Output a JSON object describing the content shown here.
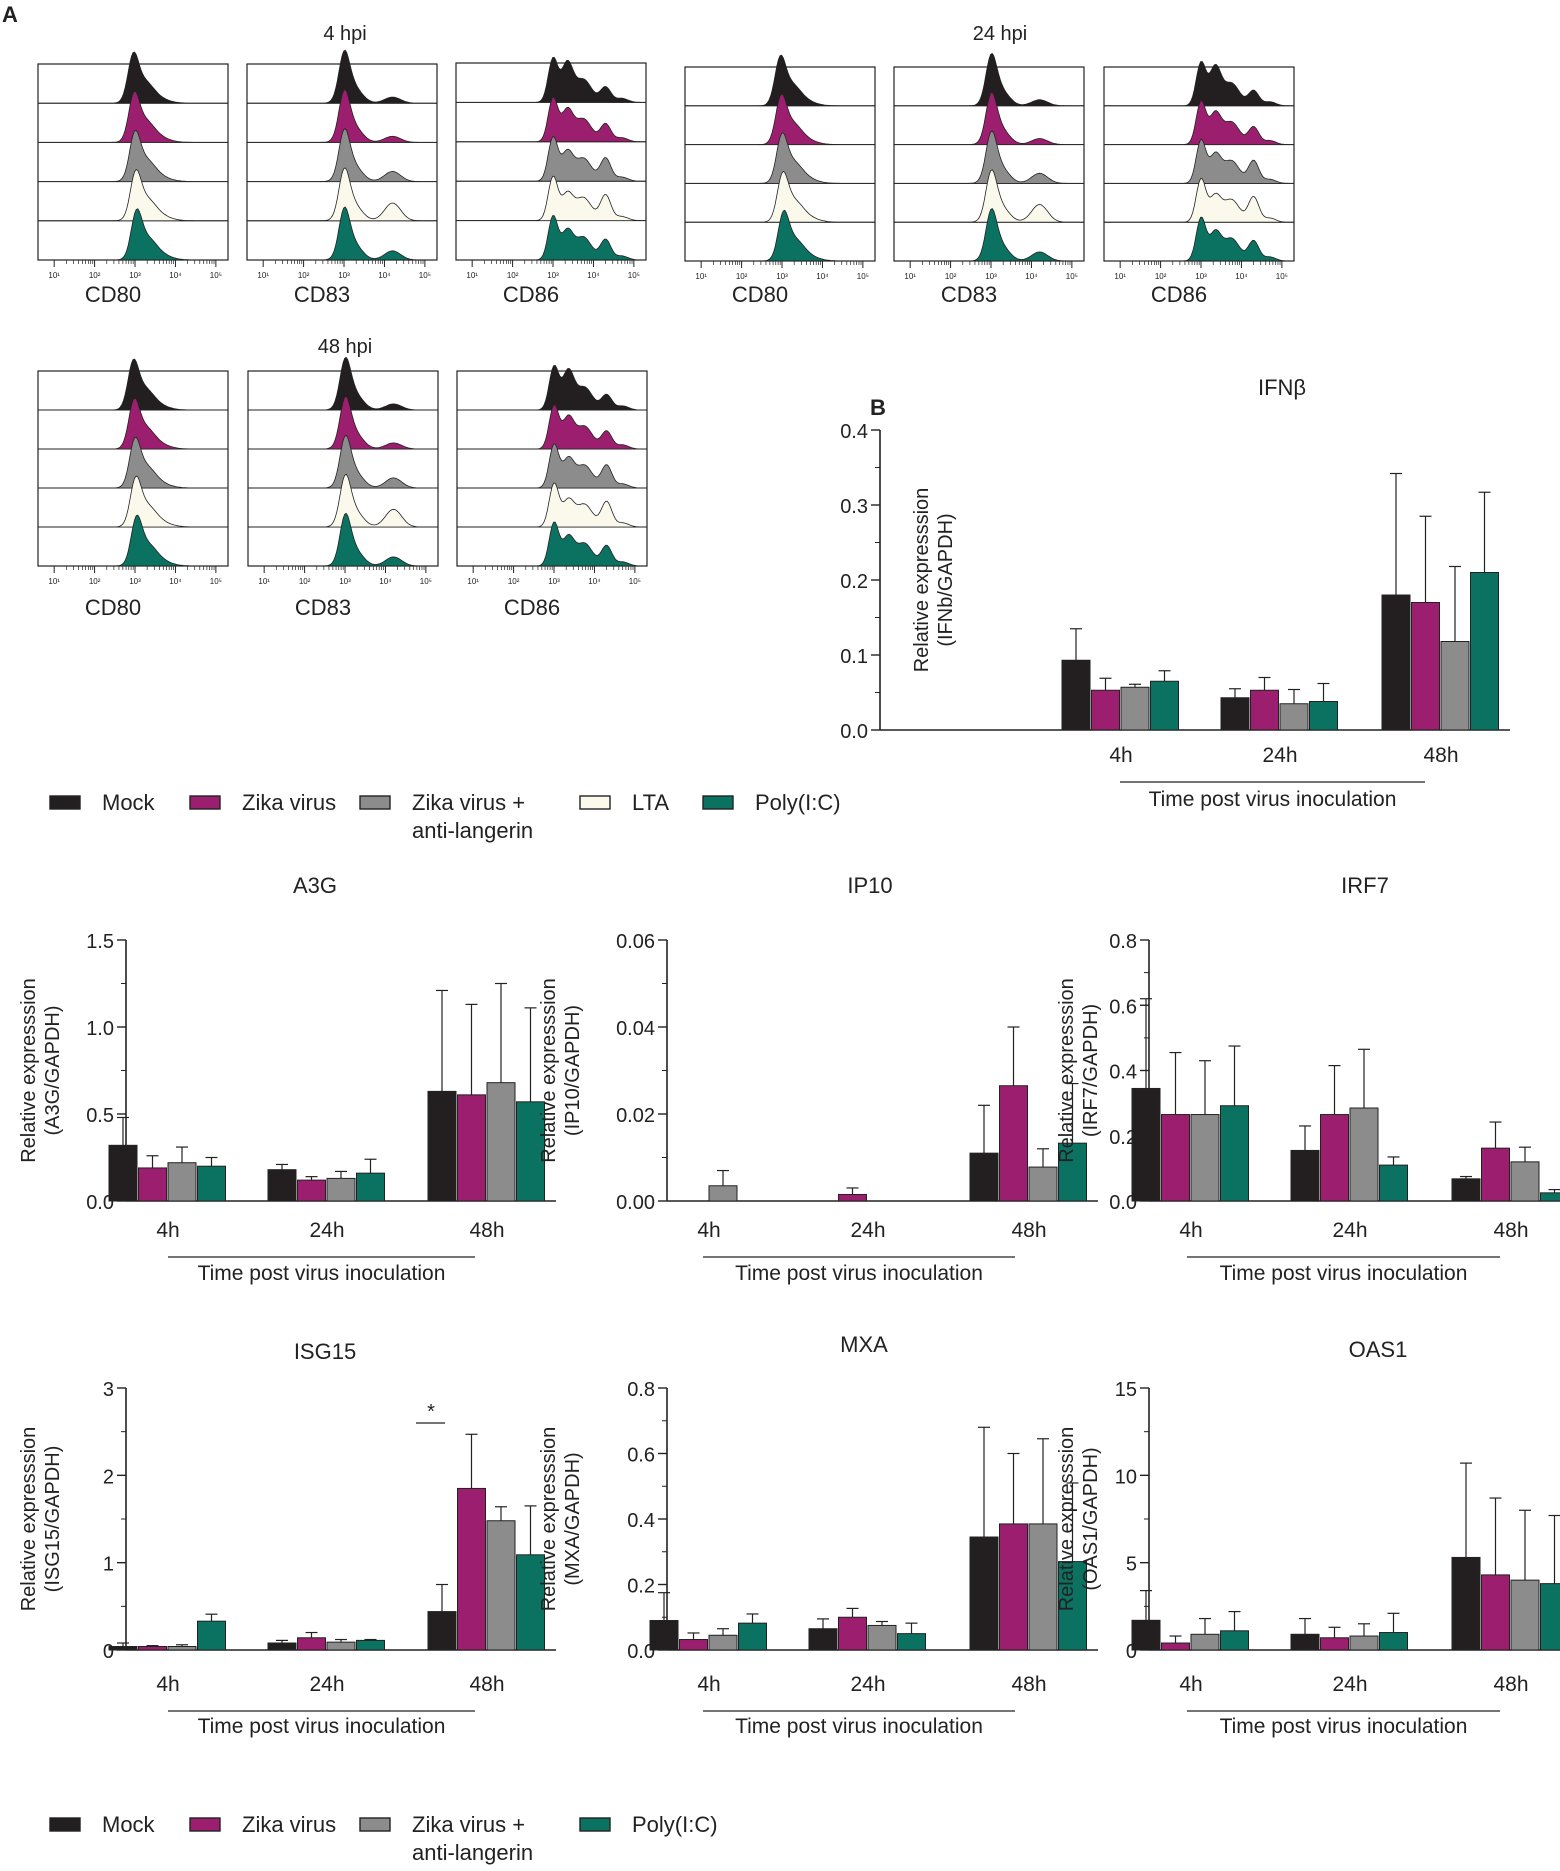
{
  "figure": {
    "panel_a_label": "A",
    "panel_b_label": "B",
    "tick_labels": [
      "10¹",
      "10²",
      "10³",
      "10⁴",
      "10⁵"
    ],
    "legend_a": [
      {
        "label": "Mock",
        "color": "#231f20"
      },
      {
        "label": "Zika virus",
        "color": "#9b1f6e"
      },
      {
        "label": "Zika virus +",
        "label2": "anti-langerin",
        "color": "#8c8c8c"
      },
      {
        "label": "LTA",
        "color": "#fbf9ec"
      },
      {
        "label": "Poly(I:C)",
        "color": "#0b7262"
      }
    ],
    "legend_b": [
      {
        "label": "Mock",
        "color": "#231f20"
      },
      {
        "label": "Zika virus",
        "color": "#9b1f6e"
      },
      {
        "label": "Zika virus +",
        "label2": "anti-langerin",
        "color": "#8c8c8c"
      },
      {
        "label": "Poly(I:C)",
        "color": "#0b7262"
      }
    ]
  },
  "chart_data": [
    {
      "type": "histogram",
      "title": "4 hpi",
      "markers": [
        "CD80",
        "CD83",
        "CD86"
      ],
      "samples": [
        "Mock",
        "Zika virus",
        "Zika virus + anti-langerin",
        "LTA",
        "Poly(I:C)"
      ],
      "x_scale": "log",
      "xlim": [
        10,
        100000
      ]
    },
    {
      "type": "histogram",
      "title": "24 hpi",
      "markers": [
        "CD80",
        "CD83",
        "CD86"
      ],
      "samples": [
        "Mock",
        "Zika virus",
        "Zika virus + anti-langerin",
        "LTA",
        "Poly(I:C)"
      ],
      "x_scale": "log",
      "xlim": [
        10,
        100000
      ]
    },
    {
      "type": "histogram",
      "title": "48 hpi",
      "markers": [
        "CD80",
        "CD83",
        "CD86"
      ],
      "samples": [
        "Mock",
        "Zika virus",
        "Zika virus + anti-langerin",
        "LTA",
        "Poly(I:C)"
      ],
      "x_scale": "log",
      "xlim": [
        10,
        100000
      ]
    },
    {
      "type": "bar",
      "title": "IFNβ",
      "ylabel1": "Relative expresssion",
      "ylabel2": "(IFNb/GAPDH)",
      "xlabel": "Time post virus inoculation",
      "categories": [
        "4h",
        "24h",
        "48h"
      ],
      "ylim": [
        0,
        0.4
      ],
      "yticks": [
        "0.0",
        "0.1",
        "0.2",
        "0.3",
        "0.4"
      ],
      "series": [
        {
          "name": "Mock",
          "values": [
            0.093,
            0.043,
            0.18
          ],
          "errors": [
            0.042,
            0.012,
            0.162
          ]
        },
        {
          "name": "Zika virus",
          "values": [
            0.053,
            0.053,
            0.17
          ],
          "errors": [
            0.016,
            0.017,
            0.115
          ]
        },
        {
          "name": "Zika virus + anti-langerin",
          "values": [
            0.057,
            0.035,
            0.118
          ],
          "errors": [
            0.004,
            0.019,
            0.1
          ]
        },
        {
          "name": "Poly(I:C)",
          "values": [
            0.065,
            0.038,
            0.21
          ],
          "errors": [
            0.014,
            0.024,
            0.107
          ]
        }
      ]
    },
    {
      "type": "bar",
      "title": "A3G",
      "ylabel1": "Relative expresssion",
      "ylabel2": "(A3G/GAPDH)",
      "xlabel": "Time post virus inoculation",
      "categories": [
        "4h",
        "24h",
        "48h"
      ],
      "ylim": [
        0,
        1.5
      ],
      "yticks": [
        "0.0",
        "0.5",
        "1.0",
        "1.5"
      ],
      "series": [
        {
          "name": "Mock",
          "values": [
            0.32,
            0.18,
            0.63
          ],
          "errors": [
            0.16,
            0.03,
            0.58
          ]
        },
        {
          "name": "Zika virus",
          "values": [
            0.19,
            0.12,
            0.61
          ],
          "errors": [
            0.07,
            0.02,
            0.52
          ]
        },
        {
          "name": "Zika virus + anti-langerin",
          "values": [
            0.22,
            0.13,
            0.68
          ],
          "errors": [
            0.09,
            0.04,
            0.57
          ]
        },
        {
          "name": "Poly(I:C)",
          "values": [
            0.2,
            0.16,
            0.57
          ],
          "errors": [
            0.05,
            0.08,
            0.54
          ]
        }
      ]
    },
    {
      "type": "bar",
      "title": "IP10",
      "ylabel1": "Relative expresssion",
      "ylabel2": "(IP10/GAPDH)",
      "xlabel": "Time post virus inoculation",
      "categories": [
        "4h",
        "24h",
        "48h"
      ],
      "ylim": [
        0,
        0.06
      ],
      "yticks": [
        "0.00",
        "0.02",
        "0.04",
        "0.06"
      ],
      "series": [
        {
          "name": "Mock",
          "values": [
            0,
            0,
            0.011
          ],
          "errors": [
            0,
            0,
            0.011
          ]
        },
        {
          "name": "Zika virus",
          "values": [
            0,
            0.0015,
            0.0265
          ],
          "errors": [
            0,
            0.0015,
            0.0135
          ]
        },
        {
          "name": "Zika virus + anti-langerin",
          "values": [
            0.0035,
            0,
            0.0078
          ],
          "errors": [
            0.0035,
            0,
            0.0042
          ]
        },
        {
          "name": "Poly(I:C)",
          "values": [
            0,
            0,
            0.0133
          ],
          "errors": [
            0,
            0,
            0.0137
          ]
        }
      ]
    },
    {
      "type": "bar",
      "title": "IRF7",
      "ylabel1": "Relative expresssion",
      "ylabel2": "(IRF7/GAPDH)",
      "xlabel": "Time post virus inoculation",
      "categories": [
        "4h",
        "24h",
        "48h"
      ],
      "ylim": [
        0,
        0.8
      ],
      "yticks": [
        "0.0",
        "0.2",
        "0.4",
        "0.6",
        "0.8"
      ],
      "series": [
        {
          "name": "Mock",
          "values": [
            0.345,
            0.155,
            0.068
          ],
          "errors": [
            0.275,
            0.075,
            0.007
          ]
        },
        {
          "name": "Zika virus",
          "values": [
            0.265,
            0.265,
            0.162
          ],
          "errors": [
            0.19,
            0.15,
            0.08
          ]
        },
        {
          "name": "Zika virus + anti-langerin",
          "values": [
            0.265,
            0.285,
            0.12
          ],
          "errors": [
            0.165,
            0.18,
            0.045
          ]
        },
        {
          "name": "Poly(I:C)",
          "values": [
            0.292,
            0.11,
            0.025
          ],
          "errors": [
            0.183,
            0.025,
            0.01
          ]
        }
      ]
    },
    {
      "type": "bar",
      "title": "ISG15",
      "ylabel1": "Relative expresssion",
      "ylabel2": "(ISG15/GAPDH)",
      "xlabel": "Time post virus inoculation",
      "categories": [
        "4h",
        "24h",
        "48h"
      ],
      "ylim": [
        0,
        3
      ],
      "yticks": [
        "0",
        "1",
        "2",
        "3"
      ],
      "annotation": "*",
      "series": [
        {
          "name": "Mock",
          "values": [
            0.04,
            0.08,
            0.44
          ],
          "errors": [
            0.04,
            0.03,
            0.31
          ]
        },
        {
          "name": "Zika virus",
          "values": [
            0.04,
            0.14,
            1.85
          ],
          "errors": [
            0.01,
            0.06,
            0.62
          ]
        },
        {
          "name": "Zika virus + anti-langerin",
          "values": [
            0.04,
            0.09,
            1.48
          ],
          "errors": [
            0.02,
            0.03,
            0.16
          ]
        },
        {
          "name": "Poly(I:C)",
          "values": [
            0.33,
            0.11,
            1.09
          ],
          "errors": [
            0.08,
            0.01,
            0.56
          ]
        }
      ]
    },
    {
      "type": "bar",
      "title": "MXA",
      "ylabel1": "Relative expresssion",
      "ylabel2": "(MXA/GAPDH)",
      "xlabel": "Time post virus inoculation",
      "categories": [
        "4h",
        "24h",
        "48h"
      ],
      "ylim": [
        0,
        0.8
      ],
      "yticks": [
        "0.0",
        "0.2",
        "0.4",
        "0.6",
        "0.8"
      ],
      "series": [
        {
          "name": "Mock",
          "values": [
            0.09,
            0.065,
            0.345
          ],
          "errors": [
            0.085,
            0.03,
            0.335
          ]
        },
        {
          "name": "Zika virus",
          "values": [
            0.032,
            0.1,
            0.385
          ],
          "errors": [
            0.02,
            0.027,
            0.215
          ]
        },
        {
          "name": "Zika virus + anti-langerin",
          "values": [
            0.045,
            0.075,
            0.385
          ],
          "errors": [
            0.02,
            0.012,
            0.26
          ]
        },
        {
          "name": "Poly(I:C)",
          "values": [
            0.082,
            0.05,
            0.27
          ],
          "errors": [
            0.028,
            0.032,
            0.24
          ]
        }
      ]
    },
    {
      "type": "bar",
      "title": "OAS1",
      "ylabel1": "Relative expresssion",
      "ylabel2": "(OAS1/GAPDH)",
      "xlabel": "Time post virus inoculation",
      "categories": [
        "4h",
        "24h",
        "48h"
      ],
      "ylim": [
        0,
        15
      ],
      "yticks": [
        "0",
        "5",
        "10",
        "15"
      ],
      "series": [
        {
          "name": "Mock",
          "values": [
            1.7,
            0.9,
            5.3
          ],
          "errors": [
            1.7,
            0.9,
            5.4
          ]
        },
        {
          "name": "Zika virus",
          "values": [
            0.4,
            0.7,
            4.3
          ],
          "errors": [
            0.4,
            0.6,
            4.4
          ]
        },
        {
          "name": "Zika virus + anti-langerin",
          "values": [
            0.9,
            0.8,
            4.0
          ],
          "errors": [
            0.9,
            0.7,
            4.0
          ]
        },
        {
          "name": "Poly(I:C)",
          "values": [
            1.1,
            1.0,
            3.8
          ],
          "errors": [
            1.1,
            1.1,
            3.9
          ]
        }
      ]
    }
  ]
}
